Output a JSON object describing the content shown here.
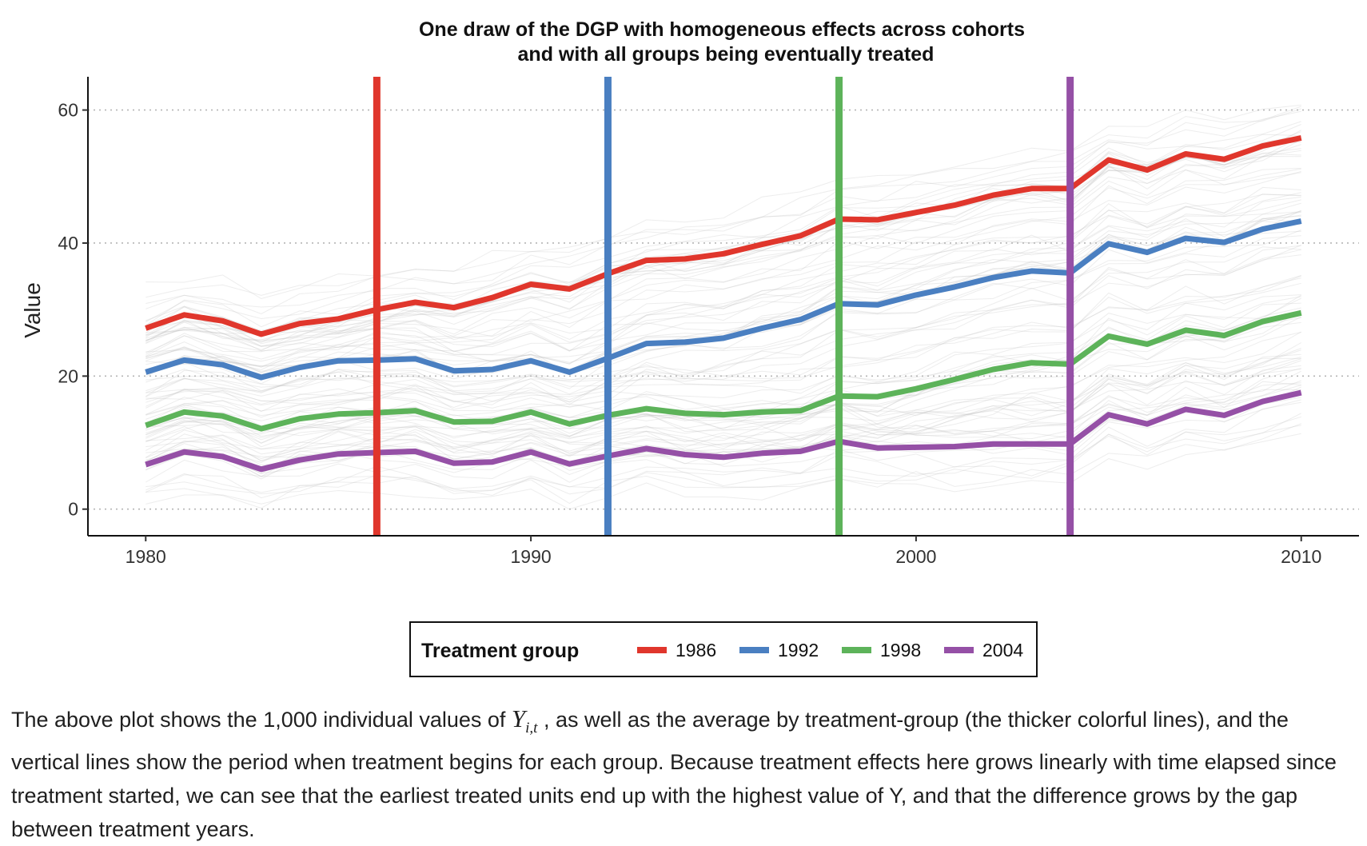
{
  "chart_data": {
    "type": "line",
    "title": [
      "One draw of the DGP with homogeneous effects across cohorts",
      "and with all groups being eventually treated"
    ],
    "xlabel": "",
    "ylabel": "Value",
    "xlim": [
      1978.5,
      2011.5
    ],
    "ylim": [
      -4,
      65
    ],
    "x_ticks": [
      "1980",
      "1990",
      "2000",
      "2010"
    ],
    "y_ticks": [
      "0",
      "20",
      "40",
      "60"
    ],
    "grid": "horizontal dotted",
    "x": [
      1980,
      1981,
      1982,
      1983,
      1984,
      1985,
      1986,
      1987,
      1988,
      1989,
      1990,
      1991,
      1992,
      1993,
      1994,
      1995,
      1996,
      1997,
      1998,
      1999,
      2000,
      2001,
      2002,
      2003,
      2004,
      2005,
      2006,
      2007,
      2008,
      2009,
      2010
    ],
    "series": [
      {
        "name": "1986",
        "color": "#e0362c",
        "treatment_year": 1986,
        "values": [
          27.2,
          29.2,
          28.3,
          26.3,
          27.9,
          28.6,
          30.0,
          31.1,
          30.3,
          31.8,
          33.8,
          33.1,
          35.4,
          37.4,
          37.6,
          38.4,
          39.8,
          41.1,
          43.6,
          43.5,
          44.6,
          45.7,
          47.2,
          48.2,
          48.2,
          52.5,
          51.0,
          53.4,
          52.6,
          54.6,
          55.8
        ]
      },
      {
        "name": "1992",
        "color": "#4a7fc1",
        "treatment_year": 1992,
        "values": [
          20.6,
          22.4,
          21.7,
          19.8,
          21.3,
          22.3,
          22.4,
          22.6,
          20.8,
          21.0,
          22.3,
          20.6,
          22.7,
          24.9,
          25.1,
          25.7,
          27.2,
          28.5,
          30.9,
          30.7,
          32.2,
          33.4,
          34.8,
          35.8,
          35.5,
          39.9,
          38.6,
          40.7,
          40.1,
          42.1,
          43.3
        ]
      },
      {
        "name": "1998",
        "color": "#5db35a",
        "treatment_year": 1998,
        "values": [
          12.6,
          14.6,
          14.0,
          12.1,
          13.6,
          14.3,
          14.5,
          14.8,
          13.1,
          13.2,
          14.6,
          12.8,
          14.1,
          15.1,
          14.4,
          14.2,
          14.6,
          14.8,
          17.0,
          16.9,
          18.1,
          19.5,
          21.0,
          22.0,
          21.8,
          26.0,
          24.8,
          26.9,
          26.1,
          28.2,
          29.5
        ]
      },
      {
        "name": "2004",
        "color": "#9550a6",
        "treatment_year": 2004,
        "values": [
          6.7,
          8.6,
          7.9,
          6.0,
          7.4,
          8.3,
          8.5,
          8.7,
          6.9,
          7.1,
          8.6,
          6.8,
          8.0,
          9.1,
          8.2,
          7.8,
          8.4,
          8.7,
          10.2,
          9.2,
          9.3,
          9.4,
          9.8,
          9.8,
          9.8,
          14.2,
          12.8,
          15.0,
          14.1,
          16.2,
          17.5
        ]
      }
    ],
    "individual_lines": {
      "count": 1000,
      "color": "#bdbdbd"
    },
    "legend": {
      "title": "Treatment group",
      "placement": "bottom",
      "labels": [
        "1986",
        "1992",
        "1998",
        "2004"
      ]
    }
  },
  "caption": {
    "part1": "The above plot shows the 1,000 individual values of ",
    "math_base": "Y",
    "math_sub": "i,t",
    "part2": " , as well as the average by treatment-group (the thicker colorful lines), and the vertical lines show the period when treatment begins for each group. Because treatment effects here grows linearly with time elapsed since treatment started, we can see that the earliest treated units end up with the highest value of Y, and that the difference grows by the gap between treatment years."
  }
}
